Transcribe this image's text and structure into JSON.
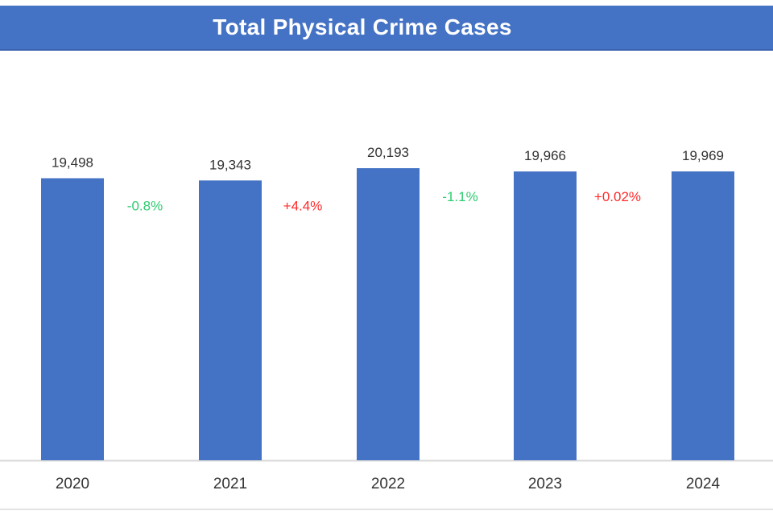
{
  "chart_data": {
    "type": "bar",
    "title": "Total Physical Crime Cases",
    "categories": [
      "2020",
      "2021",
      "2022",
      "2023",
      "2024"
    ],
    "values": [
      19498,
      19343,
      20193,
      19966,
      19969
    ],
    "value_labels": [
      "19,498",
      "19,343",
      "20,193",
      "19,966",
      "19,969"
    ],
    "changes": [
      {
        "label": "-0.8%",
        "direction": "down"
      },
      {
        "label": "+4.4%",
        "direction": "up"
      },
      {
        "label": "-1.1%",
        "direction": "down"
      },
      {
        "label": "+0.02%",
        "direction": "up"
      }
    ],
    "ylim": [
      0,
      20193
    ],
    "xlabel": "",
    "ylabel": "",
    "grid": false,
    "legend": "none",
    "colors": {
      "bar": "#4472c4",
      "decrease": "#2ecc71",
      "increase": "#ff2a2a",
      "axis": "#d9d9d9",
      "label": "#333333"
    }
  }
}
